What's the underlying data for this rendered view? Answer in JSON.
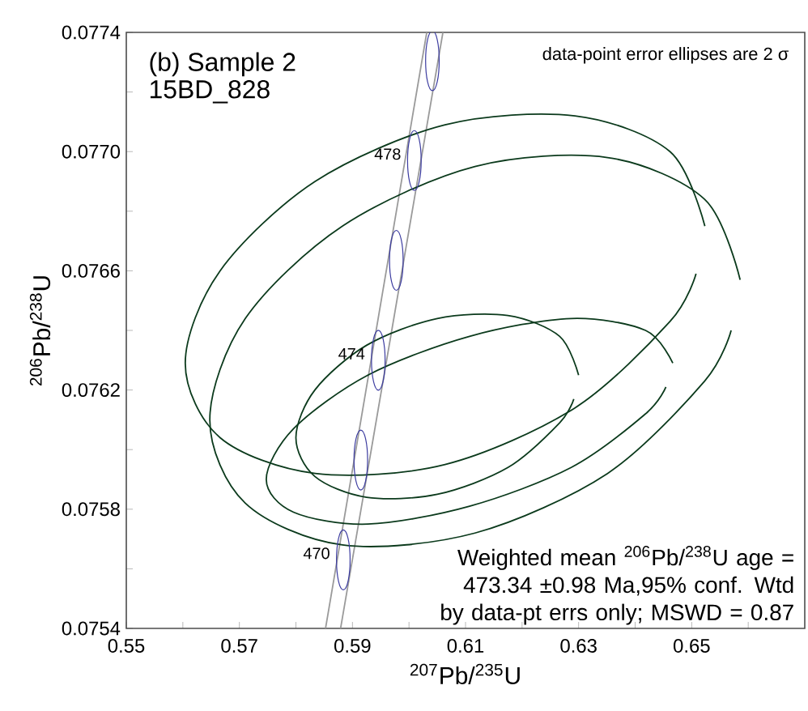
{
  "chart_data": {
    "type": "line",
    "title": "(b) Sample 2",
    "subtitle": "15BD_828",
    "xlabel": "$^{207}$Pb/$^{235}$U",
    "ylabel": "$^{206}$Pb/$^{238}$U",
    "xlim": [
      0.55,
      0.67
    ],
    "ylim": [
      0.0754,
      0.0774
    ],
    "xticks": [
      0.55,
      {
        "value": 0.56,
        "label": null
      },
      0.57,
      {
        "value": 0.58,
        "label": null
      },
      0.59,
      {
        "value": 0.6,
        "label": null
      },
      0.61,
      {
        "value": 0.62,
        "label": null
      },
      0.63,
      {
        "value": 0.64,
        "label": null
      },
      0.65,
      {
        "value": 0.66,
        "label": null
      }
    ],
    "yticks": [
      0.0754,
      {
        "value": 0.0756,
        "label": null
      },
      0.0758,
      {
        "value": 0.076,
        "label": null
      },
      0.0762,
      {
        "value": 0.0764,
        "label": null
      },
      0.0766,
      {
        "value": 0.0768,
        "label": null
      },
      {
        "value": 0.077,
        "label": "0.0770"
      },
      {
        "value": 0.0772,
        "label": null
      },
      0.0774
    ],
    "annotations": [
      {
        "text": "470",
        "x": 0.58838,
        "y": 0.07563
      },
      {
        "text": "474",
        "x": 0.59457,
        "y": 0.0763
      },
      {
        "text": "478",
        "x": 0.60095,
        "y": 0.07697
      },
      "data-point error ellipses are 2 σ",
      "Weighted mean $^{206}$Pb/$^{238}$U age = 473.34 ±0.98 Ma,95% conf. Wtd by data-pt errs only; MSWD = 0.87"
    ],
    "series": [
      {
        "color": "#9a9a9a",
        "x": [
          0.58524,
          0.60314
        ],
        "values": [
          0.0754,
          0.0774
        ]
      },
      {
        "color": "#9a9a9a",
        "x": [
          0.5879,
          0.606
        ],
        "values": [
          0.0754,
          0.0774
        ]
      },
      {
        "color": "#0b3a1c",
        "x": [
          0.65233,
          0.64617,
          0.62936,
          0.60638,
          0.5834,
          0.56659,
          0.56043,
          0.56659,
          0.5834,
          0.60638,
          0.62936,
          0.64617,
          0.65077
        ],
        "values": [
          0.07675,
          0.077,
          0.07712,
          0.07709,
          0.0769,
          0.0766,
          0.07629,
          0.07604,
          0.07592,
          0.07595,
          0.07614,
          0.07643,
          0.07659
        ]
      },
      {
        "color": "#0b3a1c",
        "x": [
          0.65857,
          0.65229,
          0.63512,
          0.61167,
          0.58822,
          0.57105,
          0.56477,
          0.57105,
          0.58822,
          0.61167,
          0.63512,
          0.65229,
          0.65698
        ],
        "values": [
          0.07657,
          0.07684,
          0.07698,
          0.07695,
          0.07675,
          0.07644,
          0.0761,
          0.07582,
          0.07568,
          0.07572,
          0.07592,
          0.07623,
          0.0764
        ]
      },
      {
        "color": "#0b3a1c",
        "x": [
          0.63,
          0.62665,
          0.6175,
          0.605,
          0.5925,
          0.58335,
          0.58,
          0.58335,
          0.5925,
          0.605,
          0.6175,
          0.62665,
          0.62915
        ],
        "values": [
          0.07625,
          0.07638,
          0.07645,
          0.07644,
          0.07635,
          0.0762,
          0.07604,
          0.07591,
          0.07584,
          0.07585,
          0.07594,
          0.07609,
          0.07617
        ]
      },
      {
        "color": "#0b3a1c",
        "x": [
          0.64666,
          0.64184,
          0.62869,
          0.61071,
          0.59273,
          0.57958,
          0.57476,
          0.57958,
          0.59273,
          0.61071,
          0.62869,
          0.64184,
          0.64544
        ],
        "values": [
          0.07629,
          0.0764,
          0.07644,
          0.07638,
          0.07625,
          0.07607,
          0.0759,
          0.07579,
          0.07575,
          0.07581,
          0.07594,
          0.07612,
          0.07621
        ]
      }
    ]
  }
}
